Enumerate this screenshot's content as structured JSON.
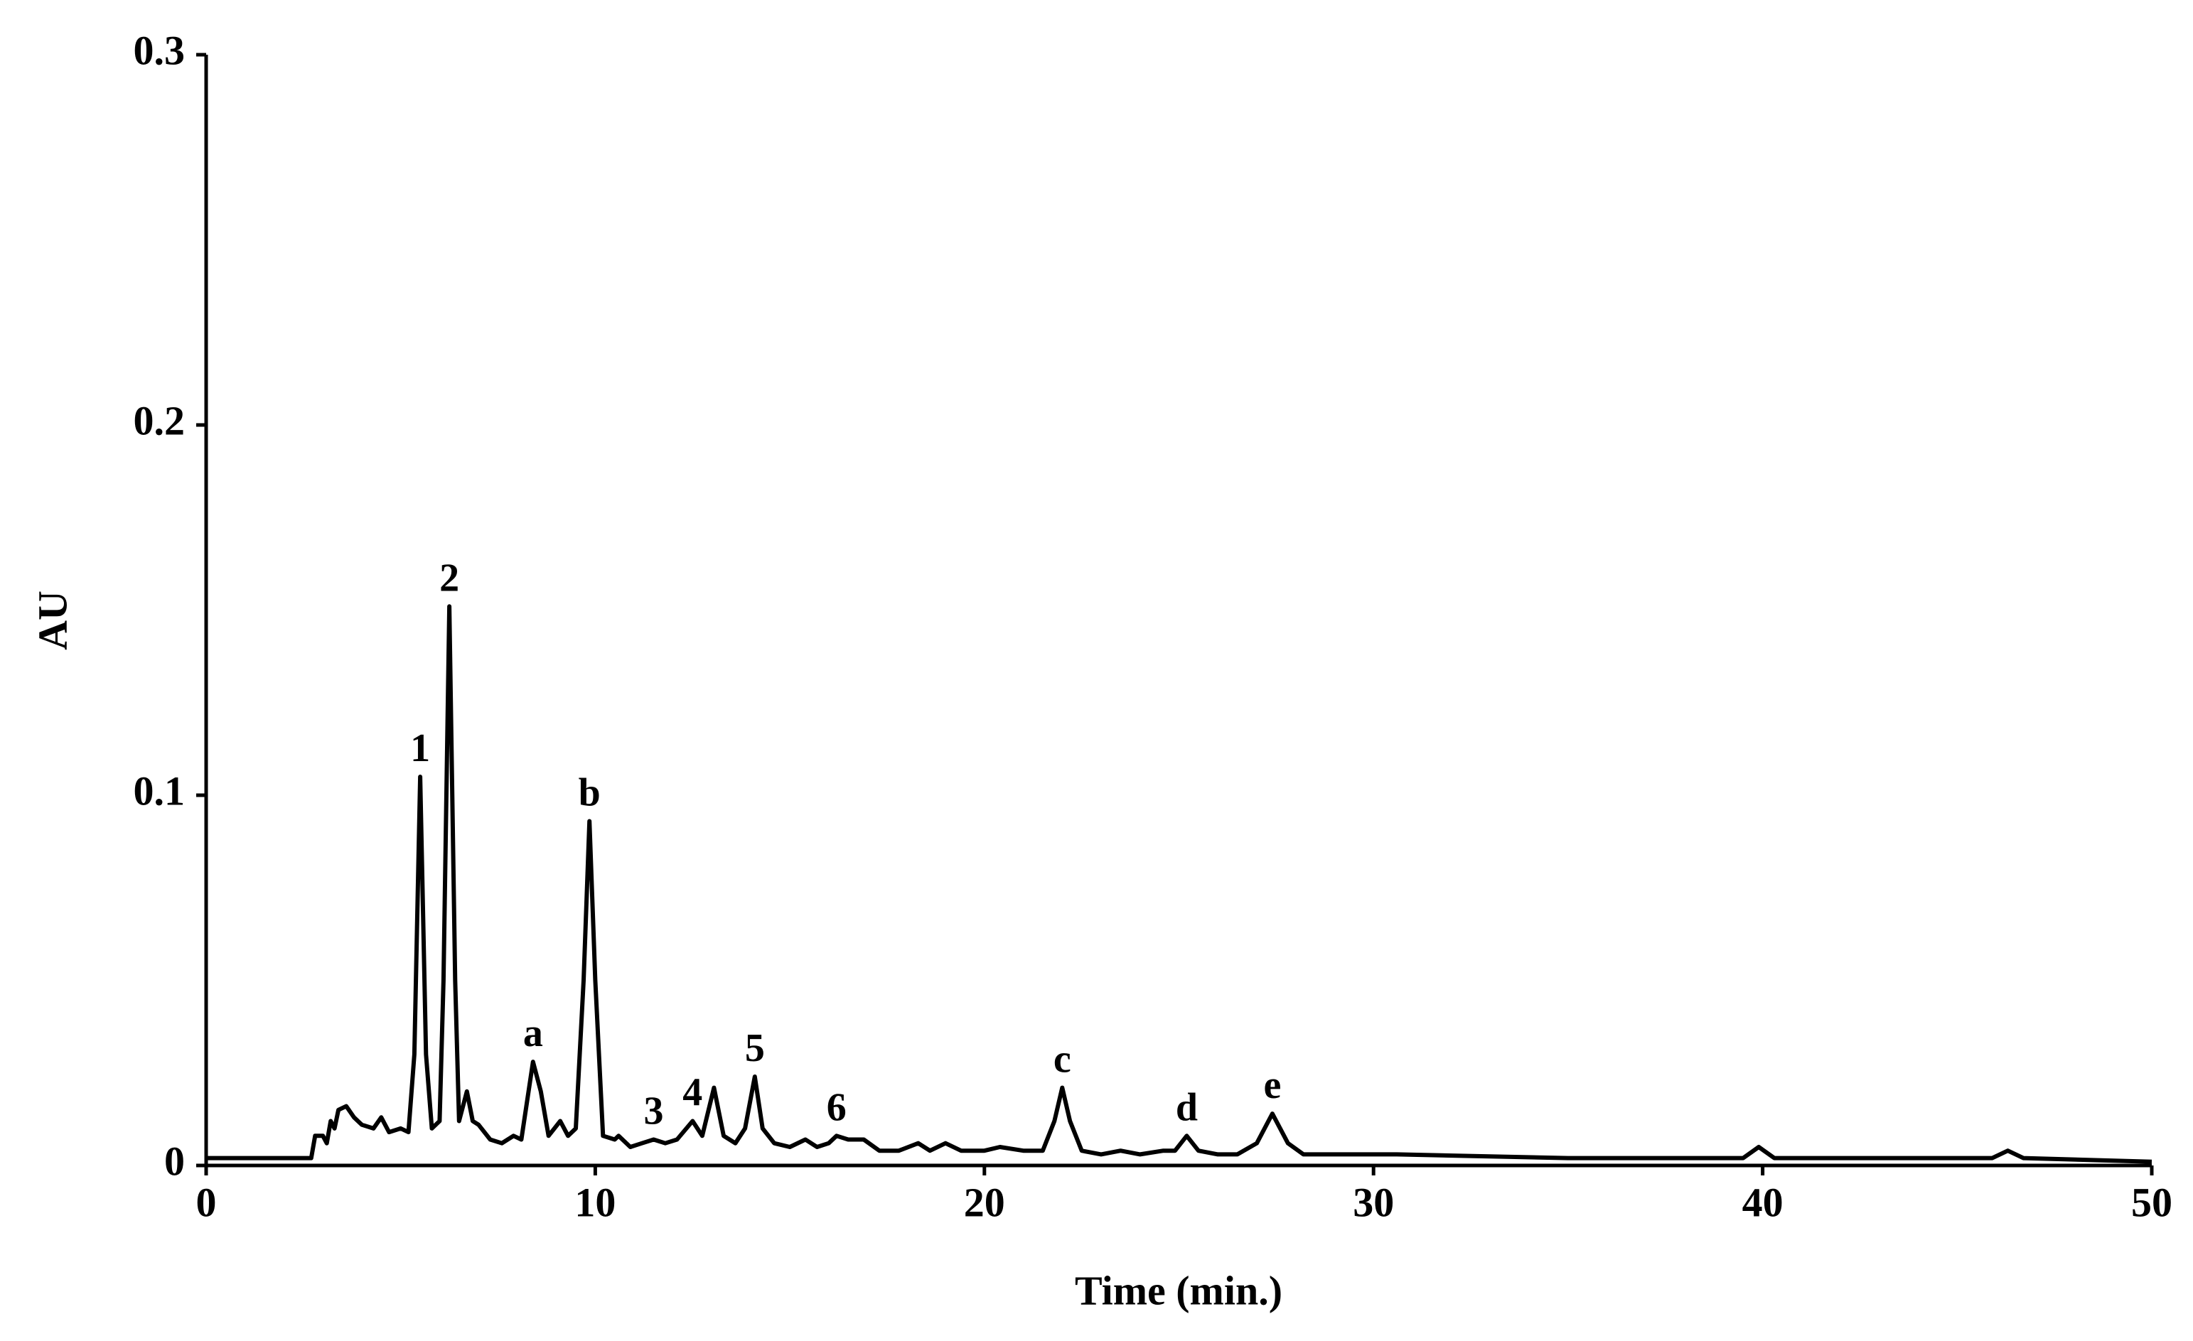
{
  "chart_data": {
    "type": "line",
    "x_label": "Time (min.)",
    "y_label": "AU",
    "xlim": [
      0,
      50
    ],
    "ylim": [
      0,
      0.3
    ],
    "xticks": [
      0,
      10,
      20,
      30,
      40,
      50
    ],
    "yticks": [
      0,
      0.1,
      0.2,
      0.3
    ],
    "grid": false,
    "series": [
      {
        "color": "#000000",
        "x": [
          0,
          2.7,
          2.8,
          3.0,
          3.1,
          3.2,
          3.3,
          3.4,
          3.6,
          3.8,
          4.0,
          4.3,
          4.5,
          4.7,
          5.0,
          5.2,
          5.35,
          5.5,
          5.65,
          5.8,
          6.0,
          6.1,
          6.25,
          6.4,
          6.5,
          6.7,
          6.85,
          7.0,
          7.3,
          7.6,
          7.9,
          8.1,
          8.4,
          8.6,
          8.8,
          9.1,
          9.3,
          9.5,
          9.7,
          9.85,
          10.0,
          10.2,
          10.5,
          10.6,
          10.9,
          11.2,
          11.5,
          11.8,
          12.1,
          12.5,
          12.75,
          13.05,
          13.3,
          13.6,
          13.85,
          14.1,
          14.3,
          14.6,
          15.0,
          15.4,
          15.7,
          16.0,
          16.2,
          16.5,
          16.9,
          17.3,
          17.8,
          18.3,
          18.6,
          19.0,
          19.4,
          20.0,
          20.4,
          21.0,
          21.5,
          21.8,
          22.0,
          22.2,
          22.5,
          23.0,
          23.5,
          24.0,
          24.6,
          24.9,
          25.2,
          25.5,
          26.0,
          26.5,
          27.0,
          27.4,
          27.8,
          28.2,
          30.0,
          30.6,
          35,
          39.5,
          39.9,
          40.3,
          45,
          45.9,
          46.3,
          46.7,
          50
        ],
        "values": [
          0.002,
          0.002,
          0.008,
          0.008,
          0.006,
          0.012,
          0.01,
          0.015,
          0.016,
          0.013,
          0.011,
          0.01,
          0.013,
          0.009,
          0.01,
          0.009,
          0.03,
          0.105,
          0.03,
          0.01,
          0.012,
          0.05,
          0.151,
          0.05,
          0.012,
          0.02,
          0.012,
          0.011,
          0.007,
          0.006,
          0.008,
          0.007,
          0.028,
          0.02,
          0.008,
          0.012,
          0.008,
          0.01,
          0.05,
          0.093,
          0.05,
          0.008,
          0.007,
          0.008,
          0.005,
          0.006,
          0.007,
          0.006,
          0.007,
          0.012,
          0.008,
          0.021,
          0.008,
          0.006,
          0.01,
          0.024,
          0.01,
          0.006,
          0.005,
          0.007,
          0.005,
          0.006,
          0.008,
          0.007,
          0.007,
          0.004,
          0.004,
          0.006,
          0.004,
          0.006,
          0.004,
          0.004,
          0.005,
          0.004,
          0.004,
          0.012,
          0.021,
          0.012,
          0.004,
          0.003,
          0.004,
          0.003,
          0.004,
          0.004,
          0.008,
          0.004,
          0.003,
          0.003,
          0.006,
          0.014,
          0.006,
          0.003,
          0.003,
          0.003,
          0.002,
          0.002,
          0.005,
          0.002,
          0.002,
          0.002,
          0.004,
          0.002,
          0.001
        ]
      }
    ],
    "annotations": [
      {
        "text": "1",
        "x": 5.5,
        "y": 0.105
      },
      {
        "text": "2",
        "x": 6.25,
        "y": 0.151
      },
      {
        "text": "a",
        "x": 8.4,
        "y": 0.028
      },
      {
        "text": "b",
        "x": 9.85,
        "y": 0.093
      },
      {
        "text": "3",
        "x": 11.5,
        "y": 0.007
      },
      {
        "text": "4",
        "x": 12.5,
        "y": 0.012
      },
      {
        "text": "5",
        "x": 14.1,
        "y": 0.024
      },
      {
        "text": "6",
        "x": 16.2,
        "y": 0.008
      },
      {
        "text": "c",
        "x": 22.0,
        "y": 0.021
      },
      {
        "text": "d",
        "x": 25.2,
        "y": 0.008
      },
      {
        "text": "e",
        "x": 27.4,
        "y": 0.014
      }
    ]
  }
}
